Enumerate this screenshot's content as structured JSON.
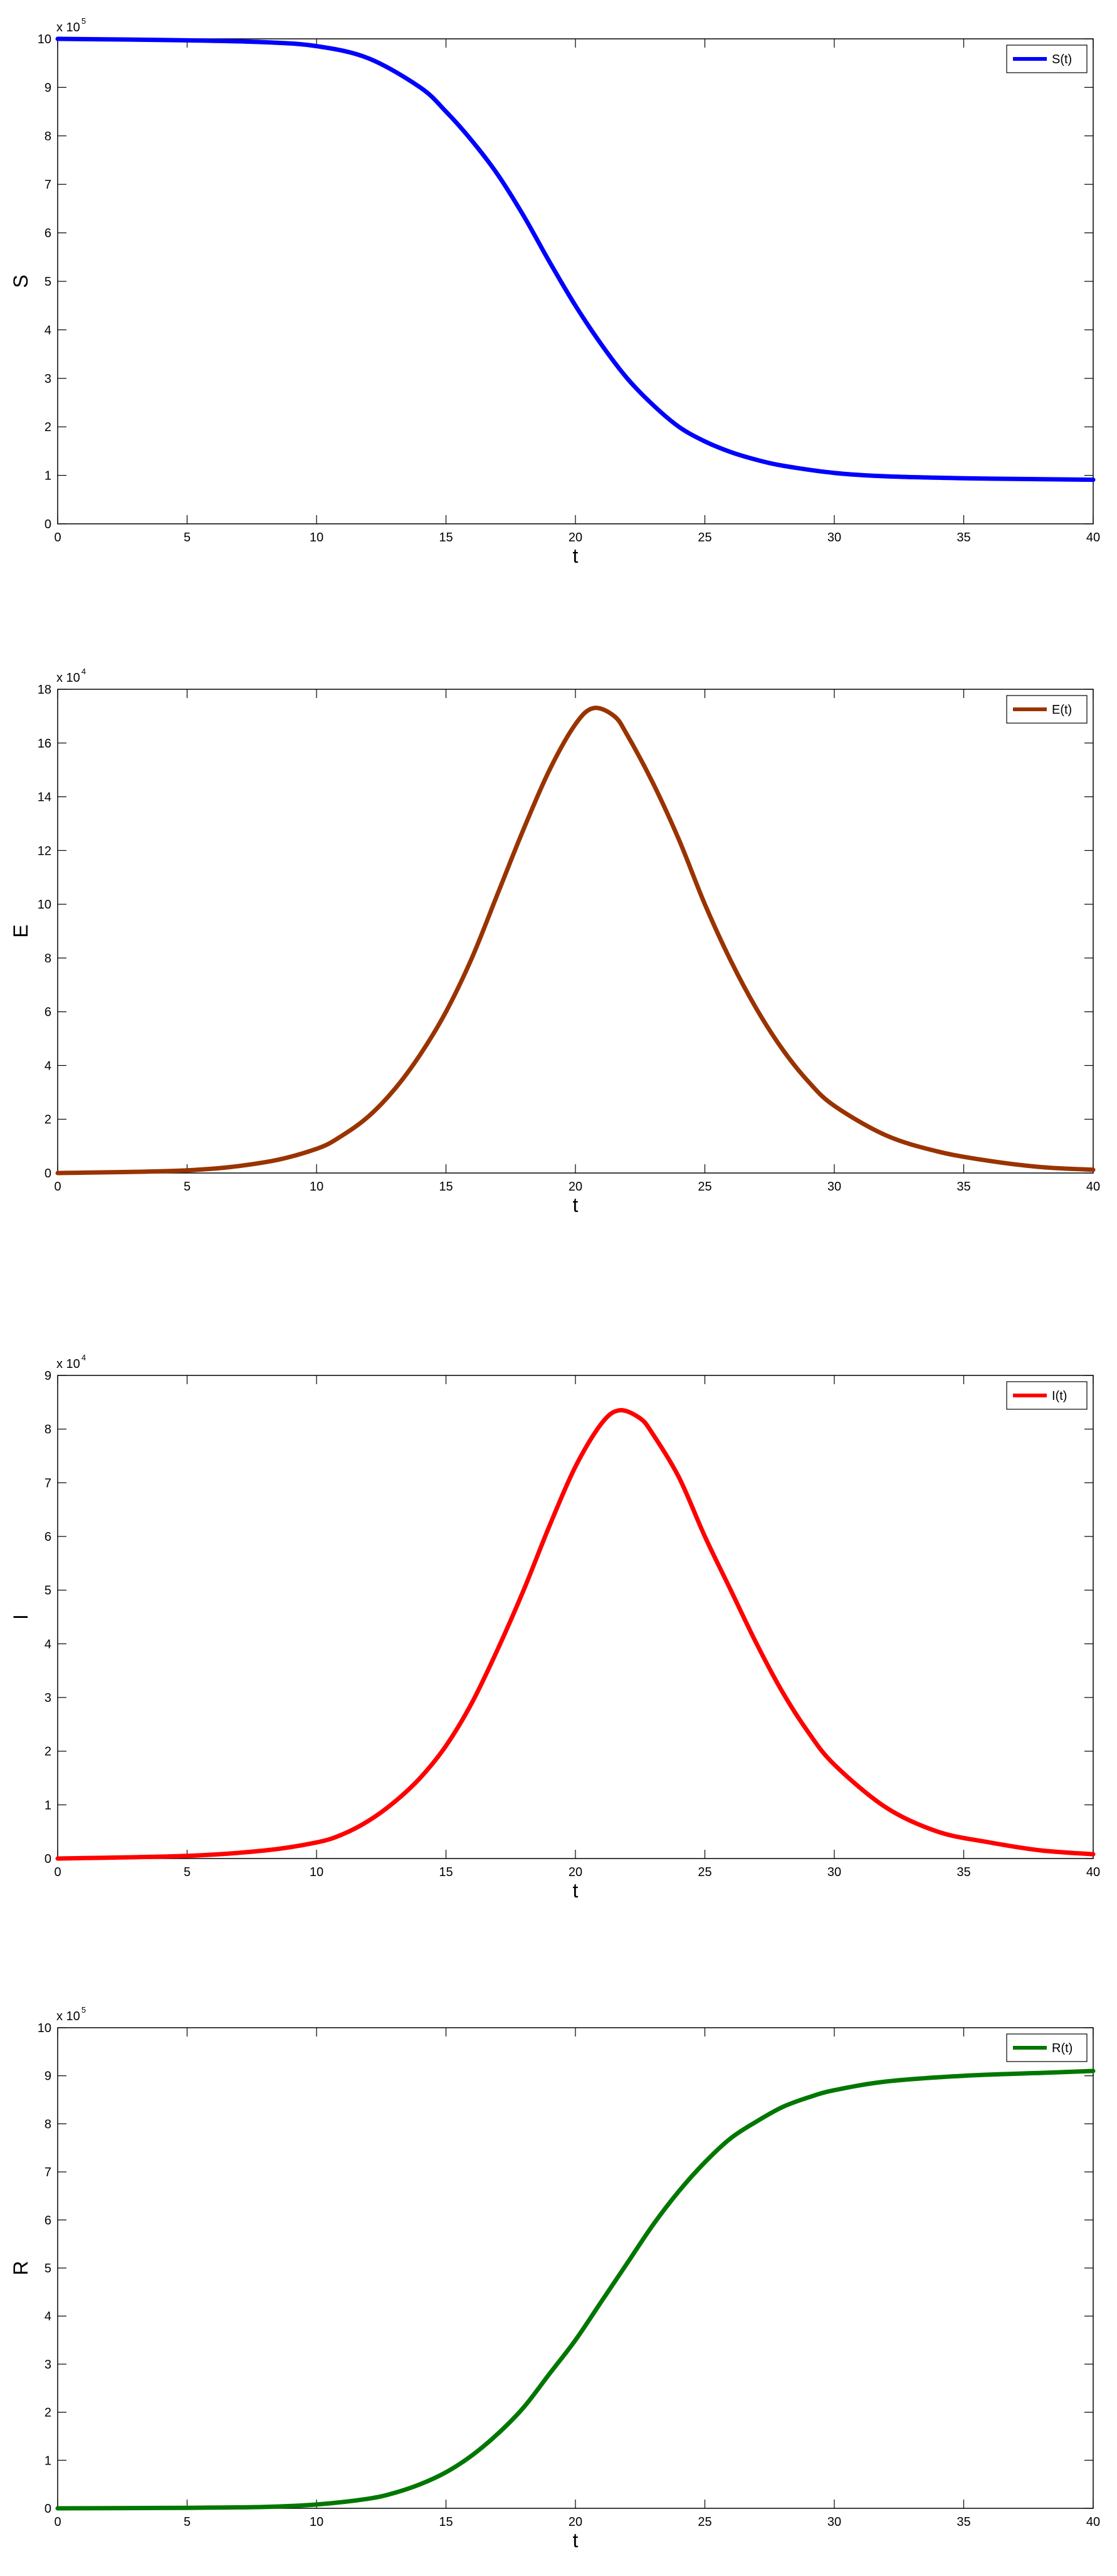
{
  "chart_data": [
    {
      "type": "line",
      "xlabel": "t",
      "ylabel": "S",
      "xlim": [
        0,
        40
      ],
      "xticks": [
        0,
        5,
        10,
        15,
        20,
        25,
        30,
        35,
        40
      ],
      "ylim": [
        0,
        10
      ],
      "yticks": [
        0,
        1,
        2,
        3,
        4,
        5,
        6,
        7,
        8,
        9,
        10
      ],
      "y_multiplier": {
        "base": "x 10",
        "exponent": "5"
      },
      "legend_position": "top-right",
      "series": [
        {
          "name": "S(t)",
          "color": "#0000ff",
          "x": [
            0,
            5,
            8,
            10,
            12,
            14,
            15,
            16,
            17,
            18,
            19,
            20,
            21,
            22,
            23,
            24,
            25,
            26,
            27,
            28,
            30,
            32,
            35,
            38,
            40
          ],
          "y": [
            10.0,
            9.97,
            9.93,
            9.85,
            9.6,
            9.0,
            8.5,
            7.9,
            7.2,
            6.35,
            5.4,
            4.5,
            3.7,
            3.0,
            2.45,
            2.0,
            1.7,
            1.48,
            1.32,
            1.2,
            1.05,
            0.98,
            0.94,
            0.92,
            0.91
          ]
        }
      ]
    },
    {
      "type": "line",
      "xlabel": "t",
      "ylabel": "E",
      "xlim": [
        0,
        40
      ],
      "xticks": [
        0,
        5,
        10,
        15,
        20,
        25,
        30,
        35,
        40
      ],
      "ylim": [
        0,
        18
      ],
      "yticks": [
        0,
        2,
        4,
        6,
        8,
        10,
        12,
        14,
        16,
        18
      ],
      "y_multiplier": {
        "base": "x 10",
        "exponent": "4"
      },
      "legend_position": "top-right",
      "series": [
        {
          "name": "E(t)",
          "color": "#993300",
          "x": [
            0,
            5,
            8,
            10,
            11,
            12,
            13,
            14,
            15,
            16,
            17,
            18,
            19,
            20,
            20.7,
            21.5,
            22,
            23,
            24,
            25,
            26,
            27,
            28,
            29,
            30,
            32,
            34,
            36,
            38,
            40
          ],
          "y": [
            0.0,
            0.1,
            0.4,
            0.9,
            1.4,
            2.1,
            3.1,
            4.4,
            6.0,
            8.0,
            10.4,
            12.8,
            15.0,
            16.7,
            17.3,
            17.0,
            16.3,
            14.5,
            12.4,
            10.0,
            7.9,
            6.1,
            4.6,
            3.4,
            2.5,
            1.4,
            0.8,
            0.45,
            0.22,
            0.12
          ]
        }
      ]
    },
    {
      "type": "line",
      "xlabel": "t",
      "ylabel": "I",
      "xlim": [
        0,
        40
      ],
      "xticks": [
        0,
        5,
        10,
        15,
        20,
        25,
        30,
        35,
        40
      ],
      "ylim": [
        0,
        9
      ],
      "yticks": [
        0,
        1,
        2,
        3,
        4,
        5,
        6,
        7,
        8,
        9
      ],
      "y_multiplier": {
        "base": "x 10",
        "exponent": "4"
      },
      "legend_position": "top-right",
      "series": [
        {
          "name": "I(t)",
          "color": "#ff0000",
          "x": [
            0,
            5,
            8,
            10,
            11,
            12,
            13,
            14,
            15,
            16,
            17,
            18,
            19,
            20,
            21,
            21.7,
            22.5,
            23,
            24,
            25,
            26,
            27,
            28,
            29,
            30,
            32,
            34,
            36,
            38,
            40
          ],
          "y": [
            0.0,
            0.05,
            0.15,
            0.3,
            0.45,
            0.7,
            1.05,
            1.5,
            2.1,
            2.9,
            3.9,
            5.0,
            6.2,
            7.3,
            8.1,
            8.35,
            8.2,
            7.9,
            7.1,
            6.0,
            5.0,
            4.0,
            3.1,
            2.35,
            1.75,
            0.95,
            0.5,
            0.3,
            0.15,
            0.08
          ]
        }
      ]
    },
    {
      "type": "line",
      "xlabel": "t",
      "ylabel": "R",
      "xlim": [
        0,
        40
      ],
      "xticks": [
        0,
        5,
        10,
        15,
        20,
        25,
        30,
        35,
        40
      ],
      "ylim": [
        0,
        10
      ],
      "yticks": [
        0,
        1,
        2,
        3,
        4,
        5,
        6,
        7,
        8,
        9,
        10
      ],
      "y_multiplier": {
        "base": "x 10",
        "exponent": "5"
      },
      "legend_position": "top-right",
      "series": [
        {
          "name": "R(t)",
          "color": "#007700",
          "x": [
            0,
            5,
            8,
            10,
            12,
            13,
            14,
            15,
            16,
            17,
            18,
            19,
            20,
            21,
            22,
            23,
            24,
            25,
            26,
            27,
            28,
            29,
            30,
            32,
            35,
            38,
            40
          ],
          "y": [
            0.0,
            0.01,
            0.03,
            0.08,
            0.2,
            0.32,
            0.5,
            0.75,
            1.1,
            1.55,
            2.1,
            2.8,
            3.5,
            4.3,
            5.1,
            5.9,
            6.6,
            7.2,
            7.7,
            8.05,
            8.35,
            8.55,
            8.7,
            8.88,
            9.0,
            9.06,
            9.1
          ]
        }
      ]
    }
  ]
}
